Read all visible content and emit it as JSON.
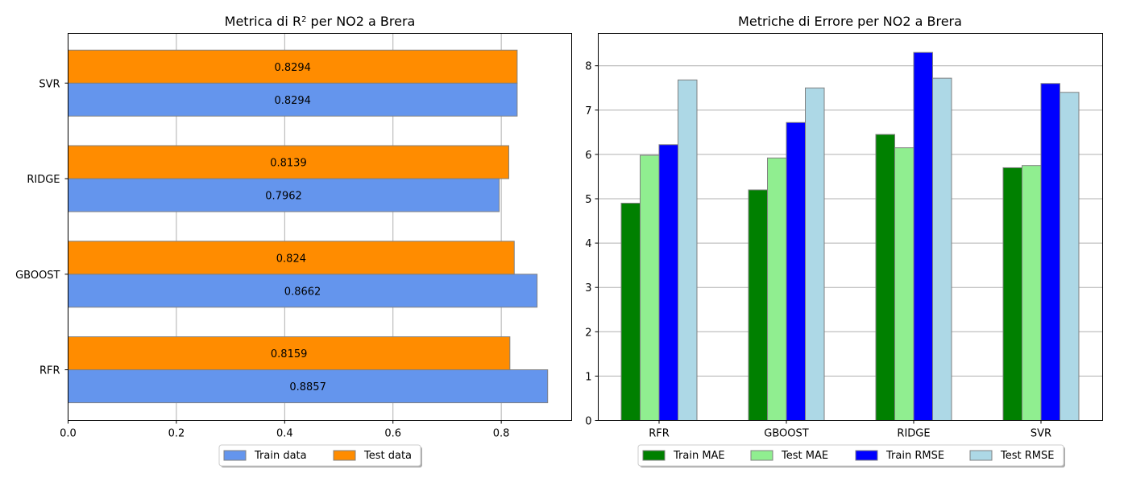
{
  "chart_data": [
    {
      "type": "bar",
      "orientation": "horizontal",
      "title_prefix": "Metrica di R",
      "title_sup": "2",
      "title_suffix": " per NO2 a Brera",
      "categories": [
        "RFR",
        "GBOOST",
        "RIDGE",
        "SVR"
      ],
      "series": [
        {
          "name": "Train data",
          "values": [
            0.8857,
            0.8662,
            0.7962,
            0.8294
          ],
          "labels": [
            "0.8857",
            "0.8662",
            "0.7962",
            "0.8294"
          ],
          "color": "#6495ED"
        },
        {
          "name": "Test data",
          "values": [
            0.8159,
            0.824,
            0.8139,
            0.8294
          ],
          "labels": [
            "0.8159",
            "0.824",
            "0.8139",
            "0.8294"
          ],
          "color": "#FF8C00"
        }
      ],
      "xlim": [
        0,
        0.93
      ],
      "xticks": [
        0.0,
        0.2,
        0.4,
        0.6,
        0.8
      ],
      "xtick_labels": [
        "0.0",
        "0.2",
        "0.4",
        "0.6",
        "0.8"
      ],
      "grid": "x",
      "legend": "bottom-center"
    },
    {
      "type": "bar",
      "orientation": "vertical",
      "title": "Metriche di Errore per NO2 a Brera",
      "categories": [
        "RFR",
        "GBOOST",
        "RIDGE",
        "SVR"
      ],
      "series": [
        {
          "name": "Train MAE",
          "values": [
            4.9,
            5.2,
            6.45,
            5.7
          ],
          "color": "#008000"
        },
        {
          "name": "Test MAE",
          "values": [
            5.98,
            5.92,
            6.15,
            5.75
          ],
          "color": "#90EE90"
        },
        {
          "name": "Train RMSE",
          "values": [
            6.22,
            6.72,
            8.3,
            7.6
          ],
          "color": "#0000FF"
        },
        {
          "name": "Test RMSE",
          "values": [
            7.68,
            7.5,
            7.72,
            7.4
          ],
          "color": "#ADD8E6"
        }
      ],
      "ylim": [
        0,
        8.73
      ],
      "yticks": [
        0,
        1,
        2,
        3,
        4,
        5,
        6,
        7,
        8
      ],
      "ytick_labels": [
        "0",
        "1",
        "2",
        "3",
        "4",
        "5",
        "6",
        "7",
        "8"
      ],
      "grid": "y",
      "legend": "bottom-center"
    }
  ]
}
